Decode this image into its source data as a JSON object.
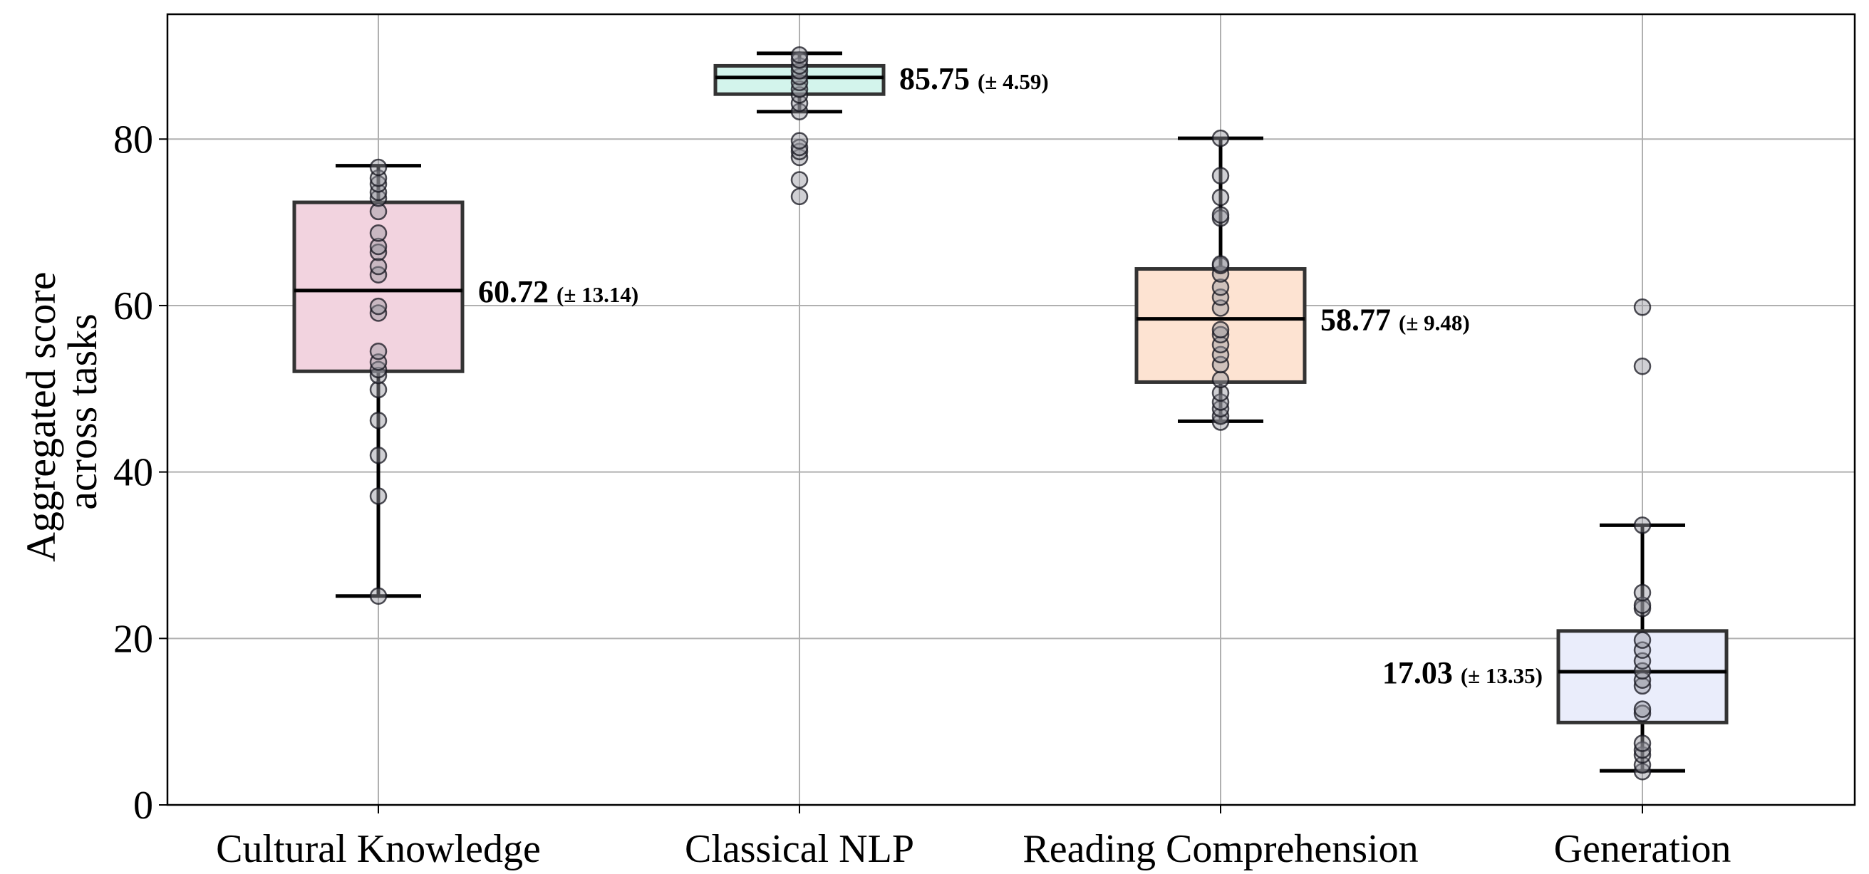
{
  "chart_data": {
    "type": "box",
    "title": "",
    "xlabel": "",
    "ylabel_lines": [
      "Aggregated score",
      "across tasks"
    ],
    "ylim": [
      0,
      95
    ],
    "yticks": [
      0,
      20,
      40,
      60,
      80
    ],
    "grid": true,
    "categories": [
      "Cultural Knowledge",
      "Classical NLP",
      "Reading Comprehension",
      "Generation"
    ],
    "boxes": [
      {
        "category": "Cultural Knowledge",
        "color": "#f2d3df",
        "whisker_low": 25.1,
        "q1": 52.1,
        "median": 61.8,
        "q3": 72.4,
        "whisker_high": 76.8,
        "mean_label": "60.72",
        "sd_label": "(± 13.14)",
        "label_side": "right",
        "points": [
          25.1,
          37.1,
          42.0,
          46.2,
          49.9,
          51.6,
          52.3,
          53.2,
          54.5,
          59.1,
          59.9,
          63.7,
          64.7,
          66.4,
          67.1,
          68.7,
          71.3,
          72.9,
          73.6,
          74.6,
          75.3,
          76.6
        ]
      },
      {
        "category": "Classical NLP",
        "color": "#d3f4ec",
        "whisker_low": 83.3,
        "q1": 85.4,
        "median": 87.4,
        "q3": 88.8,
        "whisker_high": 90.3,
        "mean_label": "85.75",
        "sd_label": "(± 4.59)",
        "label_side": "right",
        "points": [
          73.1,
          75.1,
          77.8,
          78.5,
          79.0,
          79.8,
          83.3,
          84.3,
          85.3,
          86.0,
          86.8,
          87.5,
          88.2,
          88.8,
          89.5,
          90.1
        ]
      },
      {
        "category": "Reading Comprehension",
        "color": "#fde3d2",
        "whisker_low": 46.1,
        "q1": 50.8,
        "median": 58.4,
        "q3": 64.4,
        "whisker_high": 80.1,
        "mean_label": "58.77",
        "sd_label": "(± 9.48)",
        "label_side": "right",
        "points": [
          46.0,
          46.7,
          47.6,
          48.4,
          49.5,
          51.1,
          52.9,
          54.1,
          55.3,
          56.5,
          57.1,
          59.7,
          61.0,
          62.2,
          63.8,
          64.8,
          65.0,
          70.5,
          70.9,
          73.0,
          75.6,
          80.1
        ]
      },
      {
        "category": "Generation",
        "color": "#eaedfb",
        "whisker_low": 4.1,
        "q1": 9.9,
        "median": 16.0,
        "q3": 20.9,
        "whisker_high": 33.6,
        "mean_label": "17.03",
        "sd_label": "(± 13.35)",
        "label_side": "left",
        "points": [
          4.0,
          4.8,
          6.0,
          6.6,
          7.4,
          11.0,
          11.5,
          14.3,
          15.0,
          16.1,
          17.3,
          18.6,
          19.8,
          23.6,
          24.0,
          25.5,
          33.6,
          52.7,
          59.8
        ]
      }
    ]
  }
}
